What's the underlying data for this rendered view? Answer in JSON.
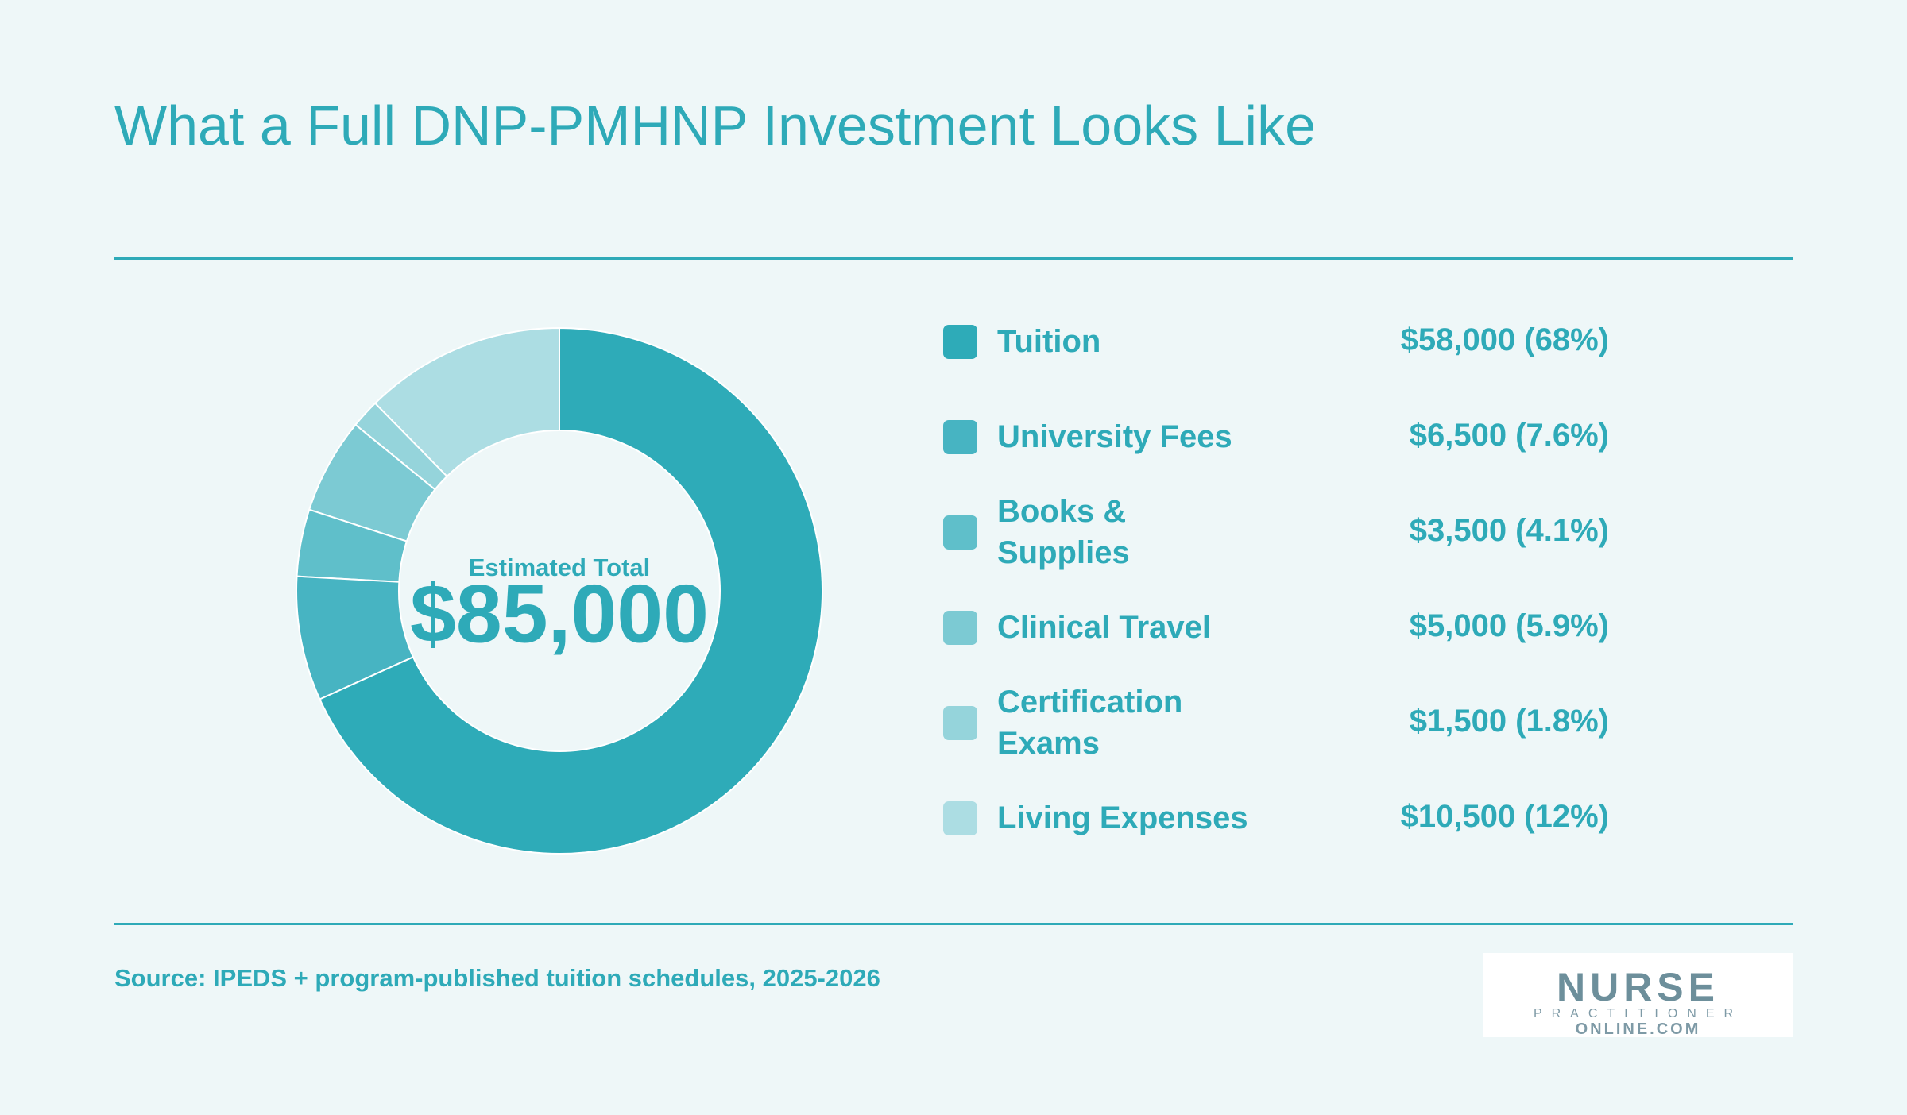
{
  "chart_data": {
    "type": "donut",
    "title": "What a Full DNP-PMHNP Investment Looks Like",
    "categories": [
      "Tuition",
      "University Fees",
      "Books & Supplies",
      "Clinical Travel",
      "Certification Exams",
      "Living Expenses"
    ],
    "values": [
      58000,
      6500,
      3500,
      5000,
      1500,
      10500
    ],
    "value_labels": [
      "$58,000 (68%)",
      "$6,500 (7.6%)",
      "$3,500 (4.1%)",
      "$5,000 (5.9%)",
      "$1,500 (1.8%)",
      "$10,500 (12%)"
    ],
    "colors": [
      "#2eabb8",
      "#47b4c2",
      "#5fbfca",
      "#7ccad3",
      "#95d4db",
      "#acdde3"
    ],
    "center_label": "Estimated Total",
    "center_value": "$85,000",
    "source": "Source: IPEDS + program-published tuition schedules, 2025-2026"
  },
  "logo": {
    "line1": "NURSE",
    "line2": "PRACTITIONER",
    "line3": "ONLINE.COM"
  }
}
